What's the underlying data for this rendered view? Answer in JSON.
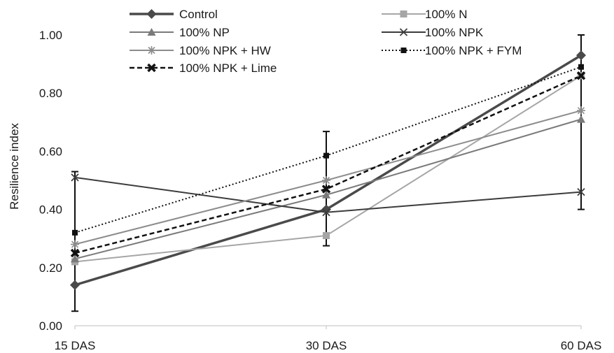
{
  "chart_data": {
    "type": "line",
    "categories": [
      "15 DAS",
      "30 DAS",
      "60 DAS"
    ],
    "ylabel": "Resilience index",
    "xlabel": "",
    "ylim": [
      0,
      1
    ],
    "yticks": [
      "0.00",
      "0.20",
      "0.40",
      "0.60",
      "0.80",
      "1.00"
    ],
    "grid": false,
    "legend_position": "top",
    "error_bars": [
      [
        0.05,
        0.53
      ],
      [
        0.275,
        0.668
      ],
      [
        0.4,
        1.0
      ]
    ],
    "series": [
      {
        "name": "Control",
        "values": [
          0.14,
          0.4,
          0.93
        ],
        "color": "#4a4a4a",
        "marker": "diamond",
        "dash": "solid",
        "width": 3.5
      },
      {
        "name": "100% N",
        "values": [
          0.22,
          0.31,
          0.86
        ],
        "color": "#a6a6a6",
        "marker": "square",
        "dash": "solid",
        "width": 2
      },
      {
        "name": "100% NP",
        "values": [
          0.23,
          0.45,
          0.71
        ],
        "color": "#7a7a7a",
        "marker": "triangle",
        "dash": "solid",
        "width": 2
      },
      {
        "name": "100% NPK",
        "values": [
          0.51,
          0.39,
          0.46
        ],
        "color": "#3c3c3c",
        "marker": "x",
        "dash": "solid",
        "width": 2
      },
      {
        "name": "100% NPK + HW",
        "values": [
          0.28,
          0.5,
          0.74
        ],
        "color": "#8c8c8c",
        "marker": "star",
        "dash": "solid",
        "width": 2
      },
      {
        "name": "100% NPK + FYM",
        "values": [
          0.32,
          0.585,
          0.89
        ],
        "color": "#111111",
        "marker": "smallsquare",
        "dash": "dotted",
        "width": 2
      },
      {
        "name": "100% NPK + Lime",
        "values": [
          0.25,
          0.47,
          0.86
        ],
        "color": "#111111",
        "marker": "boldx",
        "dash": "dashed",
        "width": 2.5
      }
    ]
  }
}
